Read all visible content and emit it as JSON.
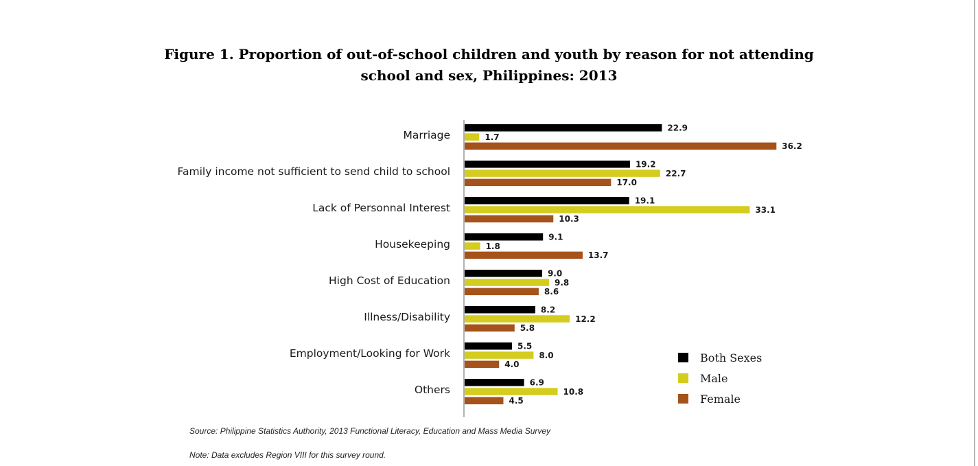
{
  "chart_data": {
    "type": "bar",
    "orientation": "horizontal",
    "title_line1": "Figure 1. Proportion of out-of-school children and youth by reason for not attending",
    "title_line2": "school and sex, Philippines: 2013",
    "categories": [
      "Marriage",
      "Family income not sufficient to send child to school",
      "Lack of Personnal Interest",
      "Housekeeping",
      "High Cost of Education",
      "Illness/Disability",
      "Employment/Looking for Work",
      "Others"
    ],
    "series": [
      {
        "name": "Both Sexes",
        "color": "#000000",
        "values": [
          22.9,
          19.2,
          19.1,
          9.1,
          9.0,
          8.2,
          5.5,
          6.9
        ]
      },
      {
        "name": "Male",
        "color": "#d4cc1e",
        "values": [
          1.7,
          22.7,
          33.1,
          1.8,
          9.8,
          12.2,
          8.0,
          10.8
        ]
      },
      {
        "name": "Female",
        "color": "#a5521b",
        "values": [
          36.2,
          17.0,
          10.3,
          13.7,
          8.6,
          5.8,
          4.0,
          4.5
        ]
      }
    ],
    "value_format": "0.0",
    "grid": false,
    "legend_position": "bottom-right"
  },
  "footer": {
    "source": "Source: Philippine Statistics Authority, 2013 Functional Literacy, Education and Mass Media Survey",
    "note": "Note: Data excludes Region VIII for this survey round."
  }
}
